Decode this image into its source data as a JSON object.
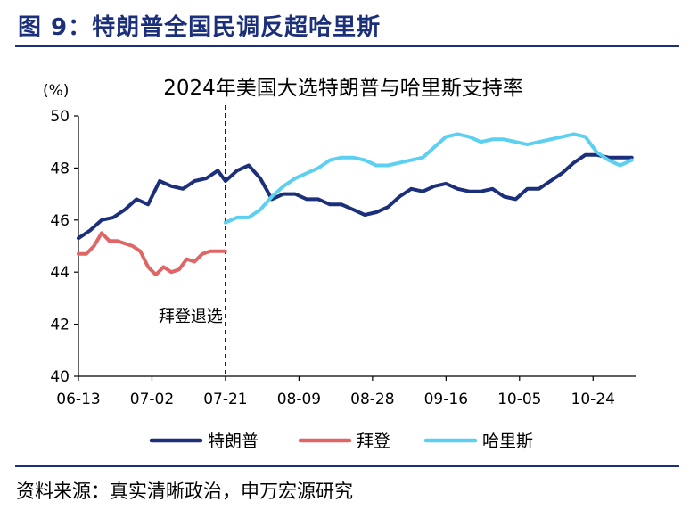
{
  "figure_title": "图 9：特朗普全国民调反超哈里斯",
  "source": "资料来源：真实清晰政治，申万宏源研究",
  "chart_data": {
    "type": "line",
    "title": "2024年美国大选特朗普与哈里斯支持率",
    "ylabel": "(%)",
    "xlabel": "",
    "ylim": [
      40,
      50
    ],
    "yticks": [
      40,
      42,
      44,
      46,
      48,
      50
    ],
    "xlim": [
      "2024-06-13",
      "2024-11-04"
    ],
    "xticks": [
      "06-13",
      "07-02",
      "07-21",
      "08-09",
      "08-28",
      "09-16",
      "10-05",
      "10-24"
    ],
    "grid": false,
    "legend_position": "bottom",
    "annotation": {
      "date": "2024-07-21",
      "text": "拜登退选",
      "style": "dashed-vertical-line"
    },
    "series": [
      {
        "name": "特朗普",
        "color": "#1b2f7a",
        "x": [
          "2024-06-13",
          "2024-06-16",
          "2024-06-19",
          "2024-06-22",
          "2024-06-25",
          "2024-06-28",
          "2024-07-01",
          "2024-07-04",
          "2024-07-07",
          "2024-07-10",
          "2024-07-13",
          "2024-07-16",
          "2024-07-19",
          "2024-07-21",
          "2024-07-24",
          "2024-07-27",
          "2024-07-30",
          "2024-08-02",
          "2024-08-05",
          "2024-08-08",
          "2024-08-11",
          "2024-08-14",
          "2024-08-17",
          "2024-08-20",
          "2024-08-23",
          "2024-08-26",
          "2024-08-29",
          "2024-09-01",
          "2024-09-04",
          "2024-09-07",
          "2024-09-10",
          "2024-09-13",
          "2024-09-16",
          "2024-09-19",
          "2024-09-22",
          "2024-09-25",
          "2024-09-28",
          "2024-10-01",
          "2024-10-04",
          "2024-10-07",
          "2024-10-10",
          "2024-10-13",
          "2024-10-16",
          "2024-10-19",
          "2024-10-22",
          "2024-10-25",
          "2024-10-28",
          "2024-10-31",
          "2024-11-03"
        ],
        "values": [
          45.3,
          45.6,
          46.0,
          46.1,
          46.4,
          46.8,
          46.6,
          47.5,
          47.3,
          47.2,
          47.5,
          47.6,
          47.9,
          47.5,
          47.9,
          48.1,
          47.6,
          46.8,
          47.0,
          47.0,
          46.8,
          46.8,
          46.6,
          46.6,
          46.4,
          46.2,
          46.3,
          46.5,
          46.9,
          47.2,
          47.1,
          47.3,
          47.4,
          47.2,
          47.1,
          47.1,
          47.2,
          46.9,
          46.8,
          47.2,
          47.2,
          47.5,
          47.8,
          48.2,
          48.5,
          48.5,
          48.4,
          48.4,
          48.4
        ]
      },
      {
        "name": "拜登",
        "color": "#e06666",
        "x": [
          "2024-06-13",
          "2024-06-15",
          "2024-06-17",
          "2024-06-19",
          "2024-06-21",
          "2024-06-23",
          "2024-06-25",
          "2024-06-27",
          "2024-06-29",
          "2024-07-01",
          "2024-07-03",
          "2024-07-05",
          "2024-07-07",
          "2024-07-09",
          "2024-07-11",
          "2024-07-13",
          "2024-07-15",
          "2024-07-17",
          "2024-07-19",
          "2024-07-21"
        ],
        "values": [
          44.7,
          44.7,
          45.0,
          45.5,
          45.2,
          45.2,
          45.1,
          45.0,
          44.8,
          44.2,
          43.9,
          44.2,
          44.0,
          44.1,
          44.5,
          44.4,
          44.7,
          44.8,
          44.8,
          44.8
        ]
      },
      {
        "name": "哈里斯",
        "color": "#5bd0f0",
        "x": [
          "2024-07-21",
          "2024-07-24",
          "2024-07-27",
          "2024-07-30",
          "2024-08-02",
          "2024-08-05",
          "2024-08-08",
          "2024-08-11",
          "2024-08-14",
          "2024-08-17",
          "2024-08-20",
          "2024-08-23",
          "2024-08-26",
          "2024-08-29",
          "2024-09-01",
          "2024-09-04",
          "2024-09-07",
          "2024-09-10",
          "2024-09-13",
          "2024-09-16",
          "2024-09-19",
          "2024-09-22",
          "2024-09-25",
          "2024-09-28",
          "2024-10-01",
          "2024-10-04",
          "2024-10-07",
          "2024-10-10",
          "2024-10-13",
          "2024-10-16",
          "2024-10-19",
          "2024-10-22",
          "2024-10-25",
          "2024-10-28",
          "2024-10-31",
          "2024-11-03"
        ],
        "values": [
          45.9,
          46.1,
          46.1,
          46.4,
          46.9,
          47.3,
          47.6,
          47.8,
          48.0,
          48.3,
          48.4,
          48.4,
          48.3,
          48.1,
          48.1,
          48.2,
          48.3,
          48.4,
          48.8,
          49.2,
          49.3,
          49.2,
          49.0,
          49.1,
          49.1,
          49.0,
          48.9,
          49.0,
          49.1,
          49.2,
          49.3,
          49.2,
          48.6,
          48.3,
          48.1,
          48.3
        ]
      }
    ]
  }
}
